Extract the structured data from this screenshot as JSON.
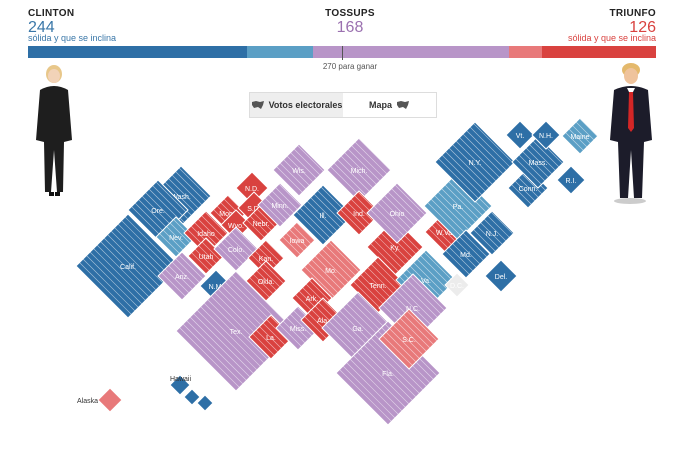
{
  "header": {
    "clinton": {
      "name": "CLINTON",
      "votes": "244",
      "subtitle": "sólida y que se inclina",
      "color": "#3a77a8"
    },
    "tossups": {
      "name": "TOSSUPS",
      "votes": "168",
      "color": "#9b71b0"
    },
    "trump": {
      "name": "TRIUNFO",
      "votes": "126",
      "subtitle": "sólida y que se inclina",
      "color": "#d9423f"
    }
  },
  "bar": {
    "segments": [
      {
        "name": "clinton-solid",
        "value": 0.348,
        "color": "#2e6fa6"
      },
      {
        "name": "clinton-lean",
        "value": 0.106,
        "color": "#5b9fc5"
      },
      {
        "name": "tossup",
        "value": 0.312,
        "color": "#b895c8"
      },
      {
        "name": "trump-lean",
        "value": 0.052,
        "color": "#e8797a"
      },
      {
        "name": "trump-solid",
        "value": 0.182,
        "color": "#d9423f"
      }
    ],
    "win_label": "270 para ganar"
  },
  "toggle": {
    "votes_label": "Votos electorales",
    "map_label": "Mapa"
  },
  "states": [
    {
      "label": "Wash."
    },
    {
      "label": "Ore."
    },
    {
      "label": "Calif."
    },
    {
      "label": "Nev."
    },
    {
      "label": "Idaho"
    },
    {
      "label": "Mont."
    },
    {
      "label": "Wyo."
    },
    {
      "label": "Utah"
    },
    {
      "label": "Ariz."
    },
    {
      "label": "Colo."
    },
    {
      "label": "N.M."
    },
    {
      "label": "N.D."
    },
    {
      "label": "S.D."
    },
    {
      "label": "Nebr."
    },
    {
      "label": "Kan."
    },
    {
      "label": "Okla."
    },
    {
      "label": "Tex."
    },
    {
      "label": "Minn."
    },
    {
      "label": "Iowa"
    },
    {
      "label": "Mo."
    },
    {
      "label": "Ark."
    },
    {
      "label": "La."
    },
    {
      "label": "Wis."
    },
    {
      "label": "Ill."
    },
    {
      "label": "Miss."
    },
    {
      "label": "Ala."
    },
    {
      "label": "Mich."
    },
    {
      "label": "Ind."
    },
    {
      "label": "Ky."
    },
    {
      "label": "Tenn."
    },
    {
      "label": "Ohio"
    },
    {
      "label": "Ga."
    },
    {
      "label": "Fla."
    },
    {
      "label": "W.Va."
    },
    {
      "label": "Va."
    },
    {
      "label": "N.C."
    },
    {
      "label": "S.C."
    },
    {
      "label": "Pa."
    },
    {
      "label": "N.Y."
    },
    {
      "label": "Md."
    },
    {
      "label": "D.C."
    },
    {
      "label": "Del."
    },
    {
      "label": "N.J."
    },
    {
      "label": "Conn."
    },
    {
      "label": "R.I."
    },
    {
      "label": "Mass."
    },
    {
      "label": "Vt."
    },
    {
      "label": "N.H."
    },
    {
      "label": "Maine"
    },
    {
      "label": "Alaska"
    },
    {
      "label": "Hawaii"
    }
  ],
  "colors": {
    "dem_solid": "#2e6fa6",
    "dem_lean": "#5b9fc5",
    "toss": "#b895c8",
    "rep_lean": "#e8797a",
    "rep_solid": "#d9423f",
    "neutral": "#ececec"
  }
}
